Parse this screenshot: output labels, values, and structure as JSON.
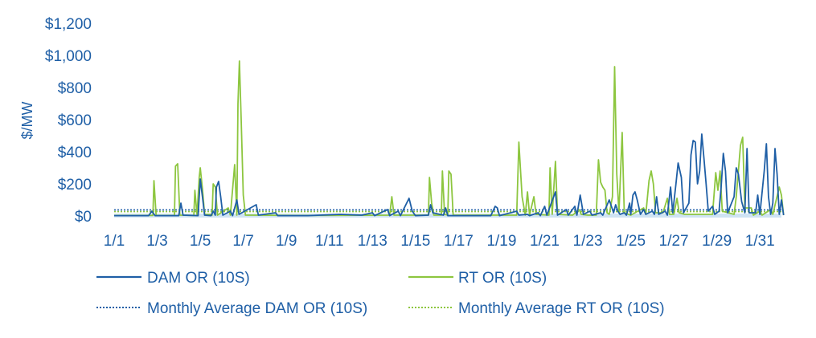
{
  "chart_data": {
    "type": "line",
    "ylabel": "$/MW",
    "ylim": [
      0,
      1200
    ],
    "yticks": [
      "$0",
      "$200",
      "$400",
      "$600",
      "$800",
      "$1,000",
      "$1,200"
    ],
    "ytick_values": [
      0,
      200,
      400,
      600,
      800,
      1000,
      1200
    ],
    "xticks": [
      "1/1",
      "1/3",
      "1/5",
      "1/7",
      "1/9",
      "1/11",
      "1/13",
      "1/15",
      "1/17",
      "1/19",
      "1/21",
      "1/23",
      "1/25",
      "1/27",
      "1/29",
      "1/31"
    ],
    "xtick_days": [
      1,
      3,
      5,
      7,
      9,
      11,
      13,
      15,
      17,
      19,
      21,
      23,
      25,
      27,
      29,
      31
    ],
    "xlim_days": [
      1,
      32
    ],
    "grid": false,
    "legend_placement": "bottom",
    "colors": {
      "dam": "#1f5fa6",
      "rt": "#8dc63f",
      "axis": "#cfe3f3",
      "text": "#1f5fa6"
    },
    "series": [
      {
        "name": "DAM OR (10S)",
        "style": "solid",
        "points": [
          [
            1.0,
            2
          ],
          [
            2.6,
            2
          ],
          [
            2.75,
            30
          ],
          [
            2.9,
            2
          ],
          [
            4.0,
            2
          ],
          [
            4.1,
            80
          ],
          [
            4.2,
            5
          ],
          [
            4.9,
            2
          ],
          [
            5.0,
            230
          ],
          [
            5.1,
            120
          ],
          [
            5.2,
            5
          ],
          [
            5.5,
            2
          ],
          [
            5.6,
            30
          ],
          [
            5.7,
            5
          ],
          [
            5.75,
            180
          ],
          [
            5.85,
            215
          ],
          [
            5.95,
            120
          ],
          [
            6.05,
            5
          ],
          [
            6.4,
            30
          ],
          [
            6.5,
            2
          ],
          [
            6.7,
            100
          ],
          [
            6.8,
            10
          ],
          [
            7.6,
            70
          ],
          [
            7.7,
            5
          ],
          [
            8.5,
            20
          ],
          [
            8.6,
            2
          ],
          [
            10.0,
            2
          ],
          [
            11.5,
            10
          ],
          [
            12.5,
            5
          ],
          [
            13.0,
            20
          ],
          [
            13.1,
            2
          ],
          [
            13.7,
            40
          ],
          [
            13.8,
            2
          ],
          [
            14.2,
            30
          ],
          [
            14.3,
            2
          ],
          [
            14.7,
            110
          ],
          [
            14.85,
            30
          ],
          [
            15.0,
            2
          ],
          [
            15.6,
            5
          ],
          [
            15.7,
            70
          ],
          [
            15.8,
            20
          ],
          [
            16.3,
            5
          ],
          [
            16.4,
            50
          ],
          [
            16.5,
            2
          ],
          [
            18.0,
            2
          ],
          [
            18.5,
            2
          ],
          [
            18.7,
            60
          ],
          [
            18.8,
            50
          ],
          [
            18.9,
            2
          ],
          [
            19.7,
            30
          ],
          [
            19.8,
            5
          ],
          [
            20.2,
            10
          ],
          [
            20.3,
            2
          ],
          [
            20.7,
            20
          ],
          [
            20.8,
            2
          ],
          [
            21.0,
            60
          ],
          [
            21.1,
            5
          ],
          [
            21.5,
            150
          ],
          [
            21.6,
            5
          ],
          [
            22.0,
            40
          ],
          [
            22.1,
            5
          ],
          [
            22.4,
            60
          ],
          [
            22.5,
            5
          ],
          [
            22.65,
            130
          ],
          [
            22.8,
            10
          ],
          [
            23.1,
            30
          ],
          [
            23.2,
            5
          ],
          [
            23.6,
            20
          ],
          [
            23.7,
            5
          ],
          [
            24.0,
            100
          ],
          [
            24.1,
            60
          ],
          [
            24.2,
            20
          ],
          [
            24.3,
            70
          ],
          [
            24.4,
            30
          ],
          [
            24.5,
            10
          ],
          [
            24.7,
            20
          ],
          [
            24.8,
            5
          ],
          [
            24.95,
            80
          ],
          [
            25.0,
            10
          ],
          [
            25.1,
            130
          ],
          [
            25.2,
            150
          ],
          [
            25.3,
            100
          ],
          [
            25.45,
            10
          ],
          [
            25.6,
            40
          ],
          [
            25.7,
            10
          ],
          [
            26.0,
            30
          ],
          [
            26.1,
            10
          ],
          [
            26.2,
            120
          ],
          [
            26.3,
            10
          ],
          [
            26.6,
            30
          ],
          [
            26.7,
            5
          ],
          [
            26.85,
            180
          ],
          [
            26.95,
            20
          ],
          [
            27.1,
            200
          ],
          [
            27.2,
            330
          ],
          [
            27.35,
            240
          ],
          [
            27.45,
            20
          ],
          [
            27.7,
            80
          ],
          [
            27.8,
            380
          ],
          [
            27.9,
            470
          ],
          [
            28.0,
            460
          ],
          [
            28.1,
            200
          ],
          [
            28.2,
            280
          ],
          [
            28.3,
            510
          ],
          [
            28.4,
            360
          ],
          [
            28.5,
            200
          ],
          [
            28.6,
            30
          ],
          [
            28.8,
            60
          ],
          [
            28.9,
            10
          ],
          [
            29.1,
            30
          ],
          [
            29.2,
            180
          ],
          [
            29.3,
            390
          ],
          [
            29.4,
            280
          ],
          [
            29.5,
            20
          ],
          [
            29.8,
            120
          ],
          [
            29.9,
            300
          ],
          [
            30.0,
            260
          ],
          [
            30.15,
            90
          ],
          [
            30.3,
            20
          ],
          [
            30.4,
            420
          ],
          [
            30.5,
            20
          ],
          [
            30.8,
            20
          ],
          [
            30.9,
            130
          ],
          [
            31.0,
            10
          ],
          [
            31.2,
            280
          ],
          [
            31.3,
            450
          ],
          [
            31.4,
            120
          ],
          [
            31.5,
            10
          ],
          [
            31.6,
            80
          ],
          [
            31.7,
            420
          ],
          [
            31.8,
            260
          ],
          [
            31.9,
            10
          ],
          [
            32.0,
            100
          ],
          [
            32.1,
            5
          ]
        ]
      },
      {
        "name": "RT OR (10S)",
        "style": "solid",
        "points": [
          [
            1.0,
            3
          ],
          [
            2.8,
            3
          ],
          [
            2.85,
            220
          ],
          [
            2.95,
            3
          ],
          [
            3.8,
            3
          ],
          [
            3.85,
            310
          ],
          [
            3.95,
            325
          ],
          [
            4.05,
            5
          ],
          [
            4.7,
            3
          ],
          [
            4.75,
            160
          ],
          [
            4.85,
            5
          ],
          [
            4.95,
            240
          ],
          [
            5.0,
            300
          ],
          [
            5.1,
            170
          ],
          [
            5.2,
            10
          ],
          [
            5.5,
            10
          ],
          [
            5.55,
            5
          ],
          [
            5.6,
            200
          ],
          [
            5.7,
            180
          ],
          [
            5.8,
            5
          ],
          [
            6.3,
            50
          ],
          [
            6.4,
            5
          ],
          [
            6.6,
            320
          ],
          [
            6.7,
            5
          ],
          [
            6.75,
            700
          ],
          [
            6.82,
            965
          ],
          [
            6.9,
            600
          ],
          [
            7.0,
            130
          ],
          [
            7.1,
            5
          ],
          [
            7.5,
            5
          ],
          [
            9.5,
            3
          ],
          [
            13.8,
            5
          ],
          [
            13.9,
            120
          ],
          [
            14.0,
            5
          ],
          [
            15.6,
            5
          ],
          [
            15.65,
            240
          ],
          [
            15.75,
            80
          ],
          [
            15.85,
            5
          ],
          [
            16.2,
            5
          ],
          [
            16.25,
            280
          ],
          [
            16.35,
            10
          ],
          [
            16.5,
            5
          ],
          [
            16.55,
            280
          ],
          [
            16.65,
            260
          ],
          [
            16.75,
            5
          ],
          [
            19.0,
            5
          ],
          [
            19.7,
            5
          ],
          [
            19.8,
            460
          ],
          [
            19.95,
            120
          ],
          [
            20.1,
            5
          ],
          [
            20.2,
            150
          ],
          [
            20.3,
            5
          ],
          [
            20.5,
            120
          ],
          [
            20.6,
            10
          ],
          [
            21.2,
            5
          ],
          [
            21.25,
            300
          ],
          [
            21.35,
            10
          ],
          [
            21.5,
            340
          ],
          [
            21.6,
            10
          ],
          [
            22.3,
            5
          ],
          [
            22.6,
            40
          ],
          [
            22.7,
            10
          ],
          [
            23.0,
            5
          ],
          [
            23.4,
            5
          ],
          [
            23.5,
            350
          ],
          [
            23.6,
            210
          ],
          [
            23.7,
            180
          ],
          [
            23.8,
            160
          ],
          [
            23.9,
            20
          ],
          [
            24.0,
            10
          ],
          [
            24.15,
            120
          ],
          [
            24.25,
            930
          ],
          [
            24.35,
            260
          ],
          [
            24.45,
            20
          ],
          [
            24.6,
            520
          ],
          [
            24.7,
            20
          ],
          [
            25.0,
            5
          ],
          [
            25.6,
            50
          ],
          [
            25.7,
            10
          ],
          [
            25.85,
            220
          ],
          [
            25.95,
            280
          ],
          [
            26.05,
            200
          ],
          [
            26.15,
            20
          ],
          [
            26.5,
            20
          ],
          [
            26.7,
            110
          ],
          [
            26.8,
            10
          ],
          [
            27.0,
            10
          ],
          [
            27.15,
            110
          ],
          [
            27.25,
            20
          ],
          [
            27.5,
            10
          ],
          [
            27.7,
            10
          ],
          [
            28.0,
            10
          ],
          [
            28.8,
            10
          ],
          [
            28.95,
            270
          ],
          [
            29.05,
            160
          ],
          [
            29.15,
            280
          ],
          [
            29.25,
            30
          ],
          [
            29.8,
            10
          ],
          [
            29.9,
            120
          ],
          [
            30.1,
            440
          ],
          [
            30.2,
            490
          ],
          [
            30.3,
            50
          ],
          [
            30.6,
            50
          ],
          [
            30.7,
            5
          ],
          [
            31.0,
            30
          ],
          [
            31.1,
            5
          ],
          [
            31.5,
            40
          ],
          [
            31.6,
            10
          ],
          [
            31.9,
            180
          ],
          [
            32.0,
            130
          ],
          [
            32.1,
            5
          ]
        ]
      },
      {
        "name": "Monthly Average DAM OR (10S)",
        "style": "dotted",
        "value": 38
      },
      {
        "name": "Monthly Average RT OR (10S)",
        "style": "dotted",
        "value": 27
      }
    ]
  }
}
